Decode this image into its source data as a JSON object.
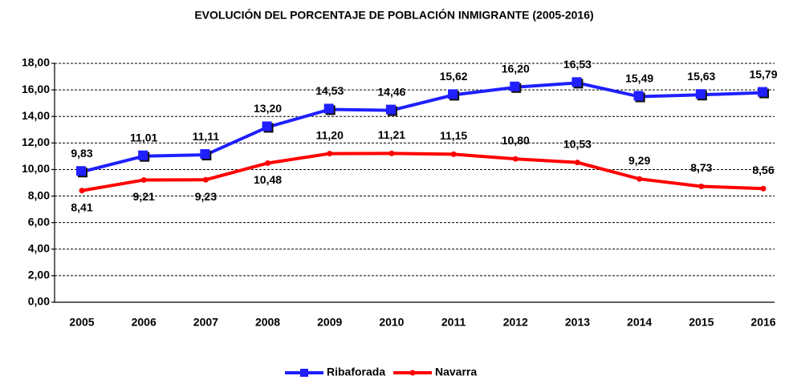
{
  "chart_data": {
    "type": "line",
    "title": "EVOLUCIÓN DEL PORCENTAJE DE POBLACIÓN INMIGRANTE (2005-2016)",
    "categories": [
      "2005",
      "2006",
      "2007",
      "2008",
      "2009",
      "2010",
      "2011",
      "2012",
      "2013",
      "2014",
      "2015",
      "2016"
    ],
    "series": [
      {
        "name": "Ribaforada",
        "color": "#1f1fff",
        "values": [
          9.83,
          11.01,
          11.11,
          13.2,
          14.53,
          14.46,
          15.62,
          16.2,
          16.53,
          15.49,
          15.63,
          15.79
        ],
        "value_labels": [
          "9,83",
          "11,01",
          "11,11",
          "13,20",
          "14,53",
          "14,46",
          "15,62",
          "16,20",
          "16,53",
          "15,49",
          "15,63",
          "15,79"
        ]
      },
      {
        "name": "Navarra",
        "color": "#ff0000",
        "values": [
          8.41,
          9.21,
          9.23,
          10.48,
          11.2,
          11.21,
          11.15,
          10.8,
          10.53,
          9.29,
          8.73,
          8.56
        ],
        "value_labels": [
          "8,41",
          "9,21",
          "9,23",
          "10,48",
          "11,20",
          "11,21",
          "11,15",
          "10,80",
          "10,53",
          "9,29",
          "8,73",
          "8,56"
        ]
      }
    ],
    "ylim": [
      0,
      18
    ],
    "yticks": [
      {
        "value": 0,
        "label": "0,00"
      },
      {
        "value": 2,
        "label": "2,00"
      },
      {
        "value": 4,
        "label": "4,00"
      },
      {
        "value": 6,
        "label": "6,00"
      },
      {
        "value": 8,
        "label": "8,00"
      },
      {
        "value": 10,
        "label": "10,00"
      },
      {
        "value": 12,
        "label": "12,00"
      },
      {
        "value": 14,
        "label": "14,00"
      },
      {
        "value": 16,
        "label": "16,00"
      },
      {
        "value": 18,
        "label": "18,00"
      }
    ],
    "grid": true,
    "legend": "bottom"
  }
}
